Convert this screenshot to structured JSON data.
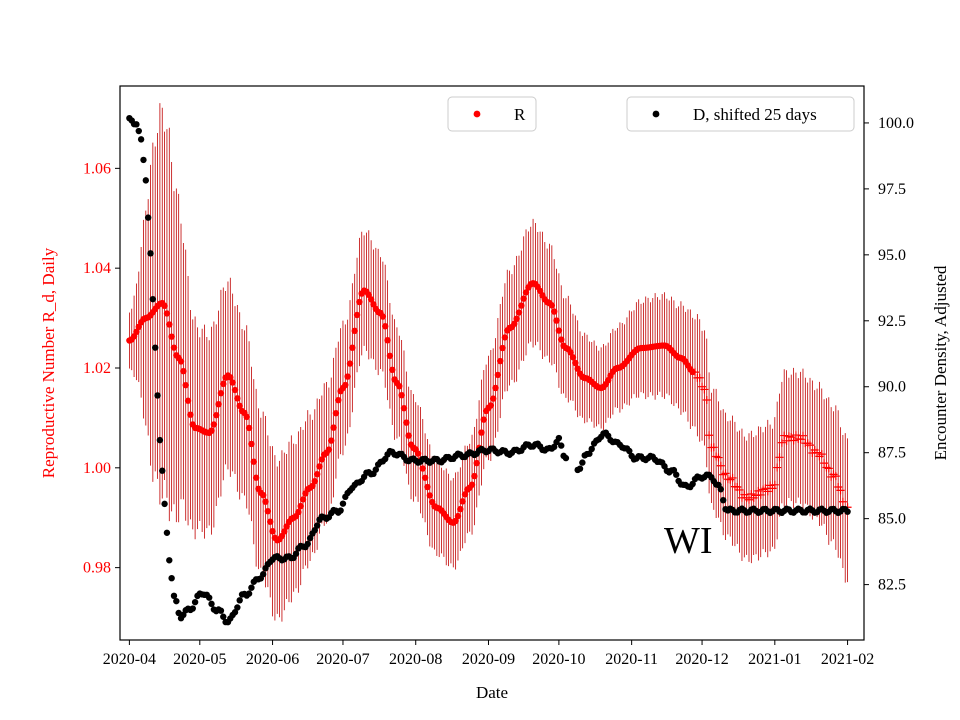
{
  "chart_data": {
    "type": "scatter",
    "title": "",
    "xlabel": "Date",
    "ylabel_left": "Reproductive Number R_d, Daily",
    "ylabel_right": "Encounter Density, Adjusted",
    "annotation": "WI",
    "x_ticks": [
      "2020-04",
      "2020-05",
      "2020-06",
      "2020-07",
      "2020-08",
      "2020-09",
      "2020-10",
      "2020-11",
      "2020-12",
      "2021-01",
      "2021-02"
    ],
    "x_range": [
      "2020-03-28",
      "2021-02-08"
    ],
    "y_left_ticks": [
      0.98,
      1.0,
      1.02,
      1.04,
      1.06
    ],
    "y_left_range": [
      0.9655,
      1.0765
    ],
    "y_right_ticks": [
      82.5,
      85.0,
      87.5,
      90.0,
      92.5,
      95.0,
      97.5,
      100.0
    ],
    "y_right_range": [
      80.4,
      101.4
    ],
    "colors": {
      "R": "#ff0000",
      "R_error": "#c00000",
      "D": "#000000",
      "left_axis_text": "#ff0000"
    },
    "legend": [
      {
        "label": "R",
        "color": "#ff0000",
        "placement": "upper-center"
      },
      {
        "label": "D, shifted 25 days",
        "color": "#000000",
        "placement": "upper-right"
      }
    ],
    "R_keypoints": [
      [
        "2020-04-01",
        1.0255
      ],
      [
        "2020-04-08",
        1.03
      ],
      [
        "2020-04-15",
        1.033
      ],
      [
        "2020-04-22",
        1.022
      ],
      [
        "2020-04-29",
        1.008
      ],
      [
        "2020-05-05",
        1.007
      ],
      [
        "2020-05-13",
        1.0185
      ],
      [
        "2020-05-20",
        1.011
      ],
      [
        "2020-05-27",
        0.995
      ],
      [
        "2020-06-03",
        0.9855
      ],
      [
        "2020-06-10",
        0.99
      ],
      [
        "2020-06-17",
        0.996
      ],
      [
        "2020-06-24",
        1.003
      ],
      [
        "2020-07-01",
        1.016
      ],
      [
        "2020-07-10",
        1.0355
      ],
      [
        "2020-07-17",
        1.031
      ],
      [
        "2020-07-24",
        1.017
      ],
      [
        "2020-07-31",
        1.004
      ],
      [
        "2020-08-10",
        0.992
      ],
      [
        "2020-08-17",
        0.989
      ],
      [
        "2020-08-24",
        0.996
      ],
      [
        "2020-09-01",
        1.012
      ],
      [
        "2020-09-10",
        1.028
      ],
      [
        "2020-09-20",
        1.037
      ],
      [
        "2020-09-27",
        1.033
      ],
      [
        "2020-10-04",
        1.024
      ],
      [
        "2020-10-12",
        1.018
      ],
      [
        "2020-10-19",
        1.016
      ],
      [
        "2020-10-26",
        1.02
      ],
      [
        "2020-11-05",
        1.024
      ],
      [
        "2020-11-15",
        1.0245
      ],
      [
        "2020-11-22",
        1.022
      ],
      [
        "2020-11-28",
        1.019
      ],
      [
        "2020-12-02",
        1.016
      ],
      [
        "2020-12-05",
        1.004
      ],
      [
        "2020-12-12",
        0.998
      ],
      [
        "2020-12-20",
        0.994
      ],
      [
        "2020-12-31",
        0.996
      ],
      [
        "2021-01-05",
        1.006
      ],
      [
        "2021-01-12",
        1.006
      ],
      [
        "2021-01-19",
        1.003
      ],
      [
        "2021-01-26",
        0.9985
      ],
      [
        "2021-02-01",
        0.9915
      ]
    ],
    "R_error_halfwidth_keypoints": [
      [
        "2020-04-01",
        0.006
      ],
      [
        "2020-04-15",
        0.038
      ],
      [
        "2020-05-01",
        0.02
      ],
      [
        "2020-06-01",
        0.016
      ],
      [
        "2020-07-10",
        0.012
      ],
      [
        "2020-08-17",
        0.009
      ],
      [
        "2020-09-20",
        0.012
      ],
      [
        "2020-10-19",
        0.008
      ],
      [
        "2020-11-15",
        0.01
      ],
      [
        "2020-12-05",
        0.012
      ],
      [
        "2021-01-10",
        0.013
      ],
      [
        "2021-02-01",
        0.014
      ]
    ],
    "D_keypoints": [
      [
        "2020-04-01",
        100.1
      ],
      [
        "2020-04-04",
        100.0
      ],
      [
        "2020-04-06",
        99.3
      ],
      [
        "2020-04-08",
        97.9
      ],
      [
        "2020-04-10",
        95.0
      ],
      [
        "2020-04-12",
        91.5
      ],
      [
        "2020-04-14",
        88.0
      ],
      [
        "2020-04-16",
        85.5
      ],
      [
        "2020-04-18",
        83.5
      ],
      [
        "2020-04-20",
        82.0
      ],
      [
        "2020-04-23",
        81.3
      ],
      [
        "2020-04-27",
        81.6
      ],
      [
        "2020-05-02",
        82.2
      ],
      [
        "2020-05-09",
        81.5
      ],
      [
        "2020-05-13",
        81.1
      ],
      [
        "2020-05-20",
        82.1
      ],
      [
        "2020-05-27",
        82.8
      ],
      [
        "2020-06-01",
        83.5
      ],
      [
        "2020-06-08",
        83.5
      ],
      [
        "2020-06-15",
        84.0
      ],
      [
        "2020-06-22",
        85.0
      ],
      [
        "2020-06-29",
        85.3
      ],
      [
        "2020-07-05",
        86.2
      ],
      [
        "2020-07-12",
        86.7
      ],
      [
        "2020-07-22",
        87.5
      ],
      [
        "2020-07-31",
        87.2
      ],
      [
        "2020-08-10",
        87.2
      ],
      [
        "2020-08-21",
        87.4
      ],
      [
        "2020-09-01",
        87.6
      ],
      [
        "2020-09-10",
        87.5
      ],
      [
        "2020-09-20",
        87.8
      ],
      [
        "2020-09-27",
        87.6
      ],
      [
        "2020-10-01",
        88.0
      ],
      [
        "2020-10-03",
        87.4
      ],
      [
        "2020-10-10",
        86.9
      ],
      [
        "2020-10-13",
        87.5
      ],
      [
        "2020-10-20",
        88.2
      ],
      [
        "2020-10-27",
        87.8
      ],
      [
        "2020-11-03",
        87.3
      ],
      [
        "2020-11-10",
        87.3
      ],
      [
        "2020-11-18",
        86.8
      ],
      [
        "2020-11-24",
        86.2
      ],
      [
        "2020-12-01",
        86.6
      ],
      [
        "2020-12-05",
        86.6
      ],
      [
        "2020-12-08",
        86.2
      ],
      [
        "2020-12-12",
        85.3
      ],
      [
        "2020-12-31",
        85.3
      ],
      [
        "2021-01-31",
        85.3
      ],
      [
        "2021-02-01",
        85.3
      ]
    ]
  }
}
